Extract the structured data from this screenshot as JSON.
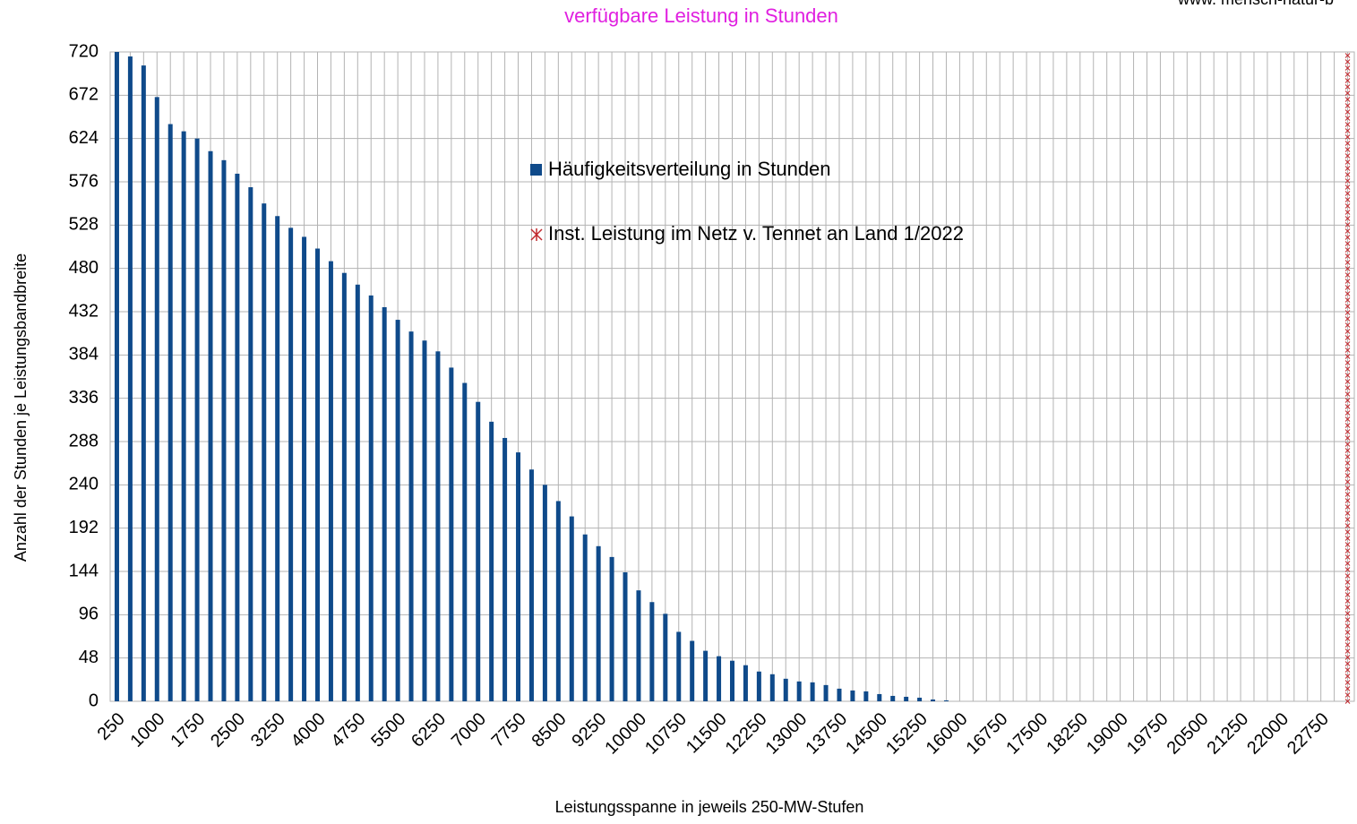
{
  "chart_data": {
    "type": "bar",
    "title": "verfügbare Leistung in Stunden",
    "watermark": "www. mensch-natur-b",
    "x_label": "Leistungsspanne in jeweils 250-MW-Stufen",
    "y_label": "Anzahl der Stunden je Leistungsbandbreite",
    "categories": [
      "250",
      null,
      null,
      "1000",
      null,
      null,
      "1750",
      null,
      null,
      "2500",
      null,
      null,
      "3250",
      null,
      null,
      "4000",
      null,
      null,
      "4750",
      null,
      null,
      "5500",
      null,
      null,
      "6250",
      null,
      null,
      "7000",
      null,
      null,
      "7750",
      null,
      null,
      "8500",
      null,
      null,
      "9250",
      null,
      null,
      "10000",
      null,
      null,
      "10750",
      null,
      null,
      "11500",
      null,
      null,
      "12250",
      null,
      null,
      "13000",
      null,
      null,
      "13750",
      null,
      null,
      "14500",
      null,
      null,
      "15250",
      null,
      null,
      "16000",
      null,
      null,
      "16750",
      null,
      null,
      "17500",
      null,
      null,
      "18250",
      null,
      null,
      "19000",
      null,
      null,
      "19750",
      null,
      null,
      "20500",
      null,
      null,
      "21250",
      null,
      null,
      "22000",
      null,
      null,
      "22750",
      null,
      null
    ],
    "series": [
      {
        "name": "Häufigkeitsverteilung in Stunden",
        "color": "#0f4a8a",
        "type": "bar",
        "values": [
          720,
          715,
          705,
          670,
          640,
          632,
          624,
          610,
          600,
          585,
          570,
          552,
          538,
          525,
          515,
          502,
          488,
          475,
          462,
          450,
          437,
          423,
          410,
          400,
          388,
          370,
          353,
          332,
          310,
          292,
          276,
          257,
          240,
          222,
          205,
          185,
          172,
          160,
          143,
          123,
          110,
          97,
          77,
          67,
          56,
          50,
          45,
          40,
          33,
          30,
          25,
          22,
          21,
          18,
          14,
          12,
          11,
          8,
          6,
          5,
          4,
          2,
          1,
          0,
          0,
          0,
          0,
          0,
          0,
          0,
          0,
          0,
          0,
          0,
          0,
          0,
          0,
          0,
          0,
          0,
          0,
          0,
          0,
          0,
          0,
          0,
          0,
          0,
          0,
          0,
          0,
          0,
          0
        ]
      },
      {
        "name": "Inst. Leistung im Netz v. Tennet an Land 1/2022",
        "color": "#c0282d",
        "type": "marker-column",
        "values": [
          null,
          null,
          null,
          null,
          null,
          null,
          null,
          null,
          null,
          null,
          null,
          null,
          null,
          null,
          null,
          null,
          null,
          null,
          null,
          null,
          null,
          null,
          null,
          null,
          null,
          null,
          null,
          null,
          null,
          null,
          null,
          null,
          null,
          null,
          null,
          null,
          null,
          null,
          null,
          null,
          null,
          null,
          null,
          null,
          null,
          null,
          null,
          null,
          null,
          null,
          null,
          null,
          null,
          null,
          null,
          null,
          null,
          null,
          null,
          null,
          null,
          null,
          null,
          null,
          null,
          null,
          null,
          null,
          null,
          null,
          null,
          null,
          null,
          null,
          null,
          null,
          null,
          null,
          null,
          null,
          null,
          null,
          null,
          null,
          null,
          null,
          null,
          null,
          null,
          null,
          null,
          null,
          720
        ]
      }
    ],
    "ylim": [
      0,
      720
    ],
    "yticks": [
      0,
      48,
      96,
      144,
      192,
      240,
      288,
      336,
      384,
      432,
      480,
      528,
      576,
      624,
      672,
      720
    ],
    "grid": true
  }
}
